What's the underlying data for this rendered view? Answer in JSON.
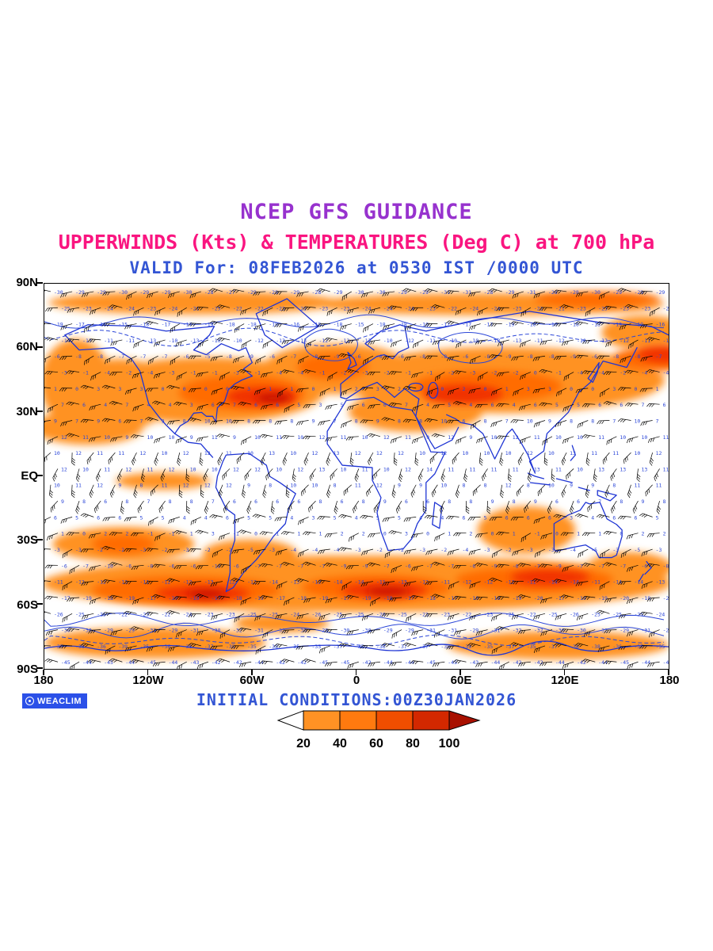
{
  "titles": {
    "line1": "NCEP GFS GUIDANCE",
    "line2": "UPPERWINDS (Kts) & TEMPERATURES (Deg C) at 700 hPa",
    "line3": "VALID For: 08FEB2026 at 0530 IST /0000 UTC"
  },
  "map": {
    "y_axis_labels": [
      "90N",
      "60N",
      "30N",
      "EQ",
      "30S",
      "60S",
      "90S"
    ],
    "x_axis_labels": [
      "180",
      "120W",
      "60W",
      "0",
      "60E",
      "120E",
      "180"
    ]
  },
  "footer": {
    "initial_conditions": "INITIAL CONDITIONS:00Z30JAN2026",
    "brand": "WEACLIM"
  },
  "colorbar": {
    "tick_labels": [
      "20",
      "40",
      "60",
      "80",
      "100"
    ],
    "segment_colors": [
      "#FF9224",
      "#FF7A0F",
      "#F04E00",
      "#D32800"
    ],
    "arrow_left_color": "#FFFFFF",
    "arrow_right_color": "#A81000"
  },
  "colors": {
    "title1_purple": "#9732CE",
    "title2_pink": "#FA1580",
    "title3_blue": "#3355D4",
    "coastline_blue": "#1F35D4",
    "temperature_text_blue": "#2B46D8",
    "wind_barb_black": "#000000",
    "brand_badge_blue": "#2B50E8"
  },
  "chart_data": {
    "type": "heatmap",
    "title": "NCEP GFS GUIDANCE",
    "subtitle": "UPPERWINDS (Kts) & TEMPERATURES (Deg C) at 700 hPa",
    "valid_time": "VALID For: 08FEB2026 at 0530 IST /0000 UTC",
    "initial_conditions": "INITIAL CONDITIONS:00Z30JAN2026",
    "level": "700 hPa",
    "projection": "global equirectangular, lat 90N-90S, lon 180W-180E",
    "x_ticks": [
      "180",
      "120W",
      "60W",
      "0",
      "60E",
      "120E",
      "180"
    ],
    "y_ticks": [
      "90N",
      "60N",
      "30N",
      "EQ",
      "30S",
      "60S",
      "90S"
    ],
    "legend": {
      "variable": "wind speed shading (Kts)",
      "thresholds": [
        20,
        40,
        60,
        80,
        100
      ],
      "colors": [
        "#FF9224",
        "#FF7A0F",
        "#F04E00",
        "#D32800",
        "#A81000"
      ],
      "position": "bottom-center"
    },
    "overlays": [
      "black wind barbs at grid points (Kts)",
      "blue temperature values at grid points (Deg C)",
      "blue coastlines and temperature contours",
      "orange/red shaded regions where wind speed exceeds 20 Kts"
    ]
  }
}
